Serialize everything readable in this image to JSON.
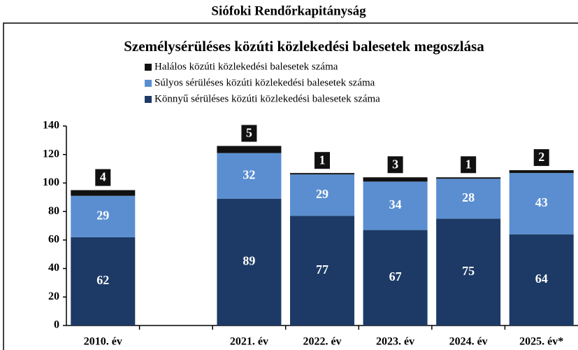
{
  "chart_data": {
    "type": "stacked_bar",
    "header": "Siófoki Rendőrkapitányság",
    "title": "Személysérüléses közúti közlekedési balesetek megoszlása",
    "categories": [
      "2010. év",
      null,
      "2021. év",
      "2022. év",
      "2023. év",
      "2024. év",
      "2025. év*"
    ],
    "series": [
      {
        "name": "Halálos közúti közlekedési balesetek száma",
        "color": "#111111",
        "values": [
          4,
          null,
          5,
          1,
          3,
          1,
          2
        ]
      },
      {
        "name": "Súlyos sérüléses közúti közlekedési balesetek száma",
        "color": "#5a8ed0",
        "values": [
          29,
          null,
          32,
          29,
          34,
          28,
          43
        ]
      },
      {
        "name": "Könnyű sérüléses közúti közlekedési balesetek száma",
        "color": "#1d3a66",
        "values": [
          62,
          null,
          89,
          77,
          67,
          75,
          64
        ]
      }
    ],
    "ylim": [
      0,
      140
    ],
    "yticks": [
      0,
      20,
      40,
      60,
      80,
      100,
      120,
      140
    ],
    "grid": false
  }
}
